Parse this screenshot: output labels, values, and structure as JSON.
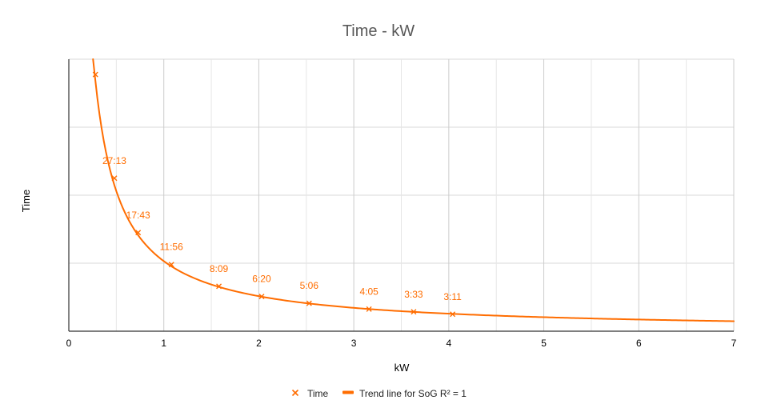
{
  "chart_data": {
    "type": "scatter",
    "title": "Time - kW",
    "xlabel": "kW",
    "ylabel": "Time",
    "xlim": [
      0,
      7
    ],
    "ylim": [
      0,
      80
    ],
    "x_ticks": [
      0,
      1,
      2,
      3,
      4,
      5,
      6,
      7
    ],
    "y_gridlines": [
      0,
      20,
      40,
      60,
      80
    ],
    "y_tick_labels_visible": false,
    "grid": true,
    "legend_position": "bottom",
    "series": [
      {
        "name": "Time",
        "marker": "x",
        "color": "#ff6d01",
        "points": [
          {
            "x": 0.28,
            "y": 75.5,
            "label": ""
          },
          {
            "x": 0.48,
            "y": 45.0,
            "label": "27:13"
          },
          {
            "x": 0.73,
            "y": 29.0,
            "label": "17:43"
          },
          {
            "x": 1.08,
            "y": 19.6,
            "label": "11:56"
          },
          {
            "x": 1.58,
            "y": 13.2,
            "label": "8:09"
          },
          {
            "x": 2.03,
            "y": 10.2,
            "label": "6:20"
          },
          {
            "x": 2.53,
            "y": 8.2,
            "label": "5:06"
          },
          {
            "x": 3.16,
            "y": 6.5,
            "label": "4:05"
          },
          {
            "x": 3.63,
            "y": 5.7,
            "label": "3:33"
          },
          {
            "x": 4.04,
            "y": 5.0,
            "label": "3:11"
          }
        ]
      }
    ],
    "trendline": {
      "name": "Trend line for SoG R² = 1",
      "model": "y = a / x",
      "a": 20.6,
      "x_start": 0.255,
      "x_end": 7,
      "color": "#ff6d01"
    },
    "colors": {
      "series": "#ff6d01",
      "grid": "#d9d9d9",
      "axis": "#333333",
      "title": "#595959"
    }
  }
}
